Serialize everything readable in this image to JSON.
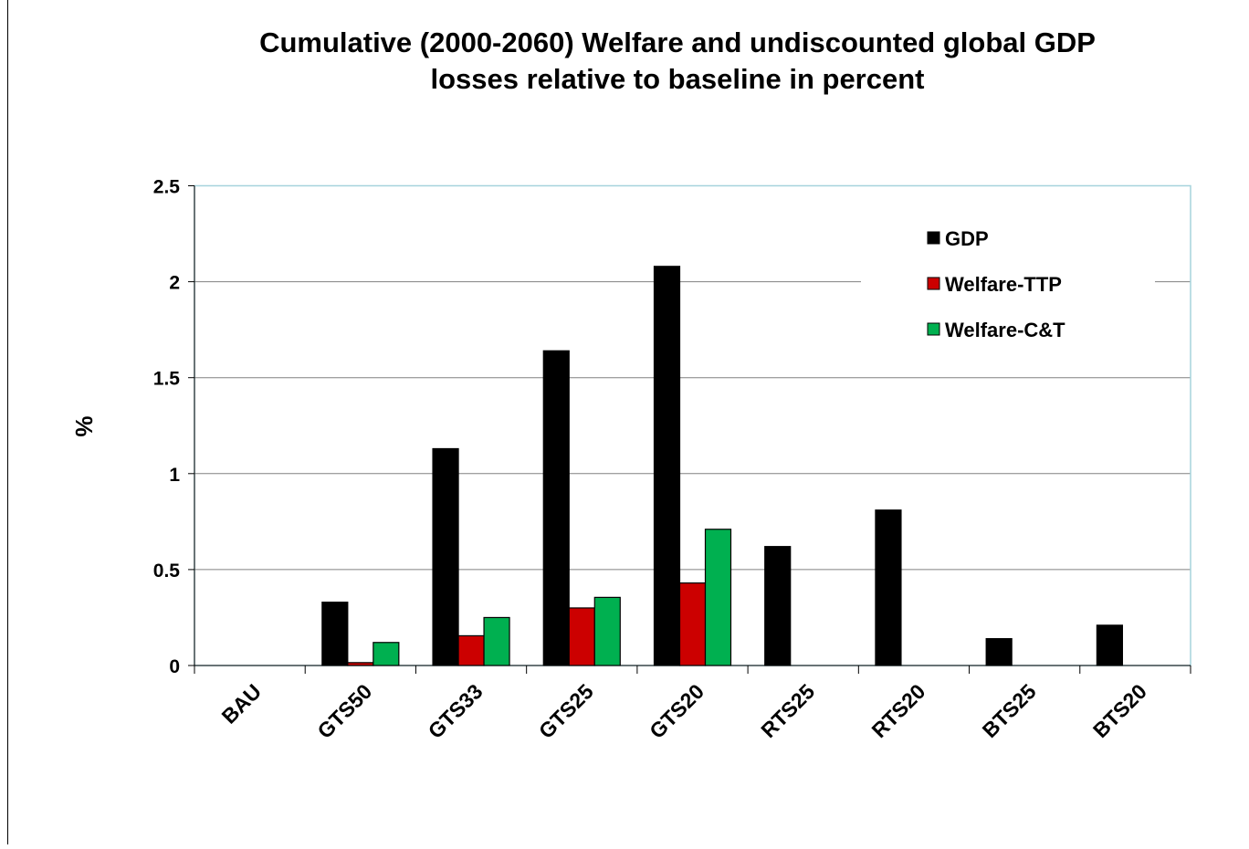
{
  "chart_data": {
    "type": "bar",
    "title": "Cumulative (2000-2060) Welfare and undiscounted  global GDP losses relative to baseline in percent",
    "title_lines": [
      "Cumulative (2000-2060) Welfare and undiscounted  global GDP",
      "losses relative to baseline in percent"
    ],
    "xlabel": "",
    "ylabel": "%",
    "ylim": [
      0,
      2.5
    ],
    "yticks": [
      "0",
      "0.5",
      "1",
      "1.5",
      "2",
      "2.5"
    ],
    "ytick_values": [
      0,
      0.5,
      1,
      1.5,
      2,
      2.5
    ],
    "grid": true,
    "legend_position": "top-right",
    "categories": [
      "BAU",
      "GTS50",
      "GTS33",
      "GTS25",
      "GTS20",
      "RTS25",
      "RTS20",
      "BTS25",
      "BTS20"
    ],
    "series": [
      {
        "name": "GDP",
        "color": "#000000",
        "values": [
          0,
          0.33,
          1.13,
          1.64,
          2.08,
          0.62,
          0.81,
          0.14,
          0.21
        ]
      },
      {
        "name": "Welfare-TTP",
        "color": "#cc0000",
        "values": [
          0,
          0.015,
          0.155,
          0.3,
          0.43,
          0,
          0,
          0,
          0
        ]
      },
      {
        "name": "Welfare-C&T",
        "color": "#00b050",
        "values": [
          0,
          0.12,
          0.25,
          0.355,
          0.71,
          0,
          0,
          0,
          0
        ]
      }
    ]
  }
}
